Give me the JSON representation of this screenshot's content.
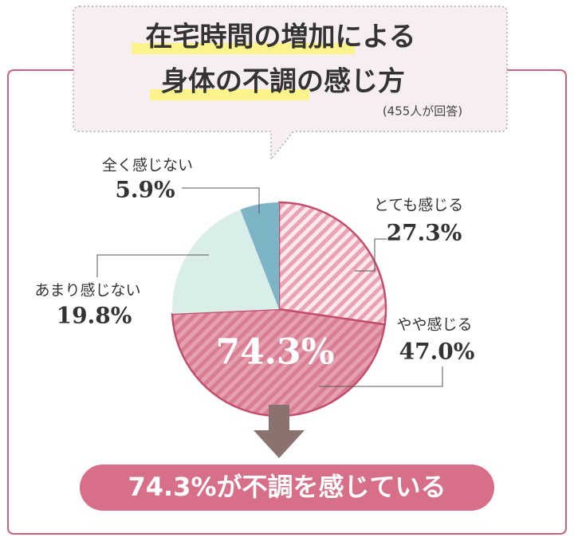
{
  "chart_data": {
    "type": "pie",
    "title": [
      "在宅時間の増加による",
      "身体の不調の感じ方"
    ],
    "subtitle": "(455人が回答)",
    "categories": [
      "とても感じる",
      "やや感じる",
      "あまり感じない",
      "全く感じない"
    ],
    "values": [
      27.3,
      47.0,
      19.8,
      5.9
    ],
    "value_labels": [
      "27.3%",
      "47.0%",
      "19.8%",
      "5.9%"
    ],
    "colors": [
      "#e9a3b3",
      "#d87d94",
      "#d9ede9",
      "#7db4c6"
    ],
    "striped": [
      true,
      true,
      false,
      false
    ],
    "annotations": [
      "74.3%",
      "74.3%が不調を感じている"
    ]
  }
}
